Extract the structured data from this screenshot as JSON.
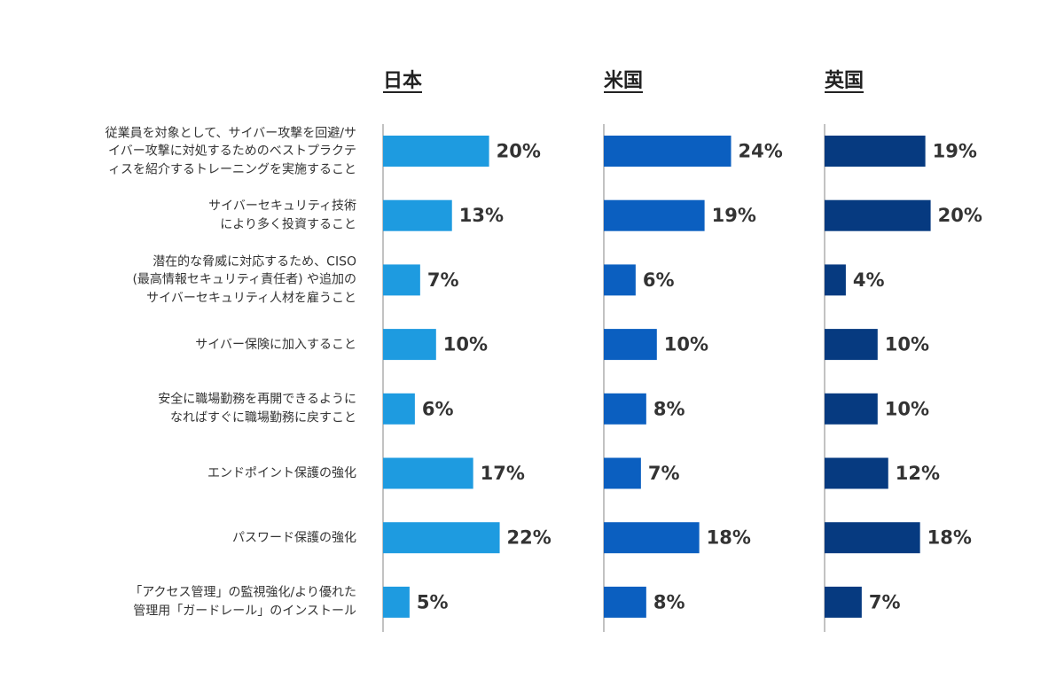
{
  "chart_data": {
    "type": "bar",
    "orientation": "horizontal",
    "categories": [
      "従業員を対象として、サイバー攻撃を回避/サ\nイバー攻撃に対処するためのベストプラクテ\nィスを紹介するトレーニングを実施すること",
      "サイバーセキュリティ技術\nにより多く投資すること",
      "潜在的な脅威に対応するため、CISO\n(最高情報セキュリティ責任者) や追加の\nサイバーセキュリティ人材を雇うこと",
      "サイバー保険に加入すること",
      "安全に職場勤務を再開できるように\nなればすぐに職場勤務に戻すこと",
      "エンドポイント保護の強化",
      "パスワード保護の強化",
      "「アクセス管理」の監視強化/より優れた\n管理用「ガードレール」のインストール"
    ],
    "series": [
      {
        "name": "日本",
        "color": "#1e9be0",
        "values": [
          20,
          13,
          7,
          10,
          6,
          17,
          22,
          5
        ]
      },
      {
        "name": "米国",
        "color": "#0b5fc0",
        "values": [
          24,
          19,
          6,
          10,
          8,
          7,
          18,
          8
        ]
      },
      {
        "name": "英国",
        "color": "#063a80",
        "values": [
          19,
          20,
          4,
          10,
          10,
          12,
          18,
          7
        ]
      }
    ],
    "value_suffix": "%",
    "axis_line_color": "#999999",
    "label_color": "#333333",
    "grid": false
  }
}
